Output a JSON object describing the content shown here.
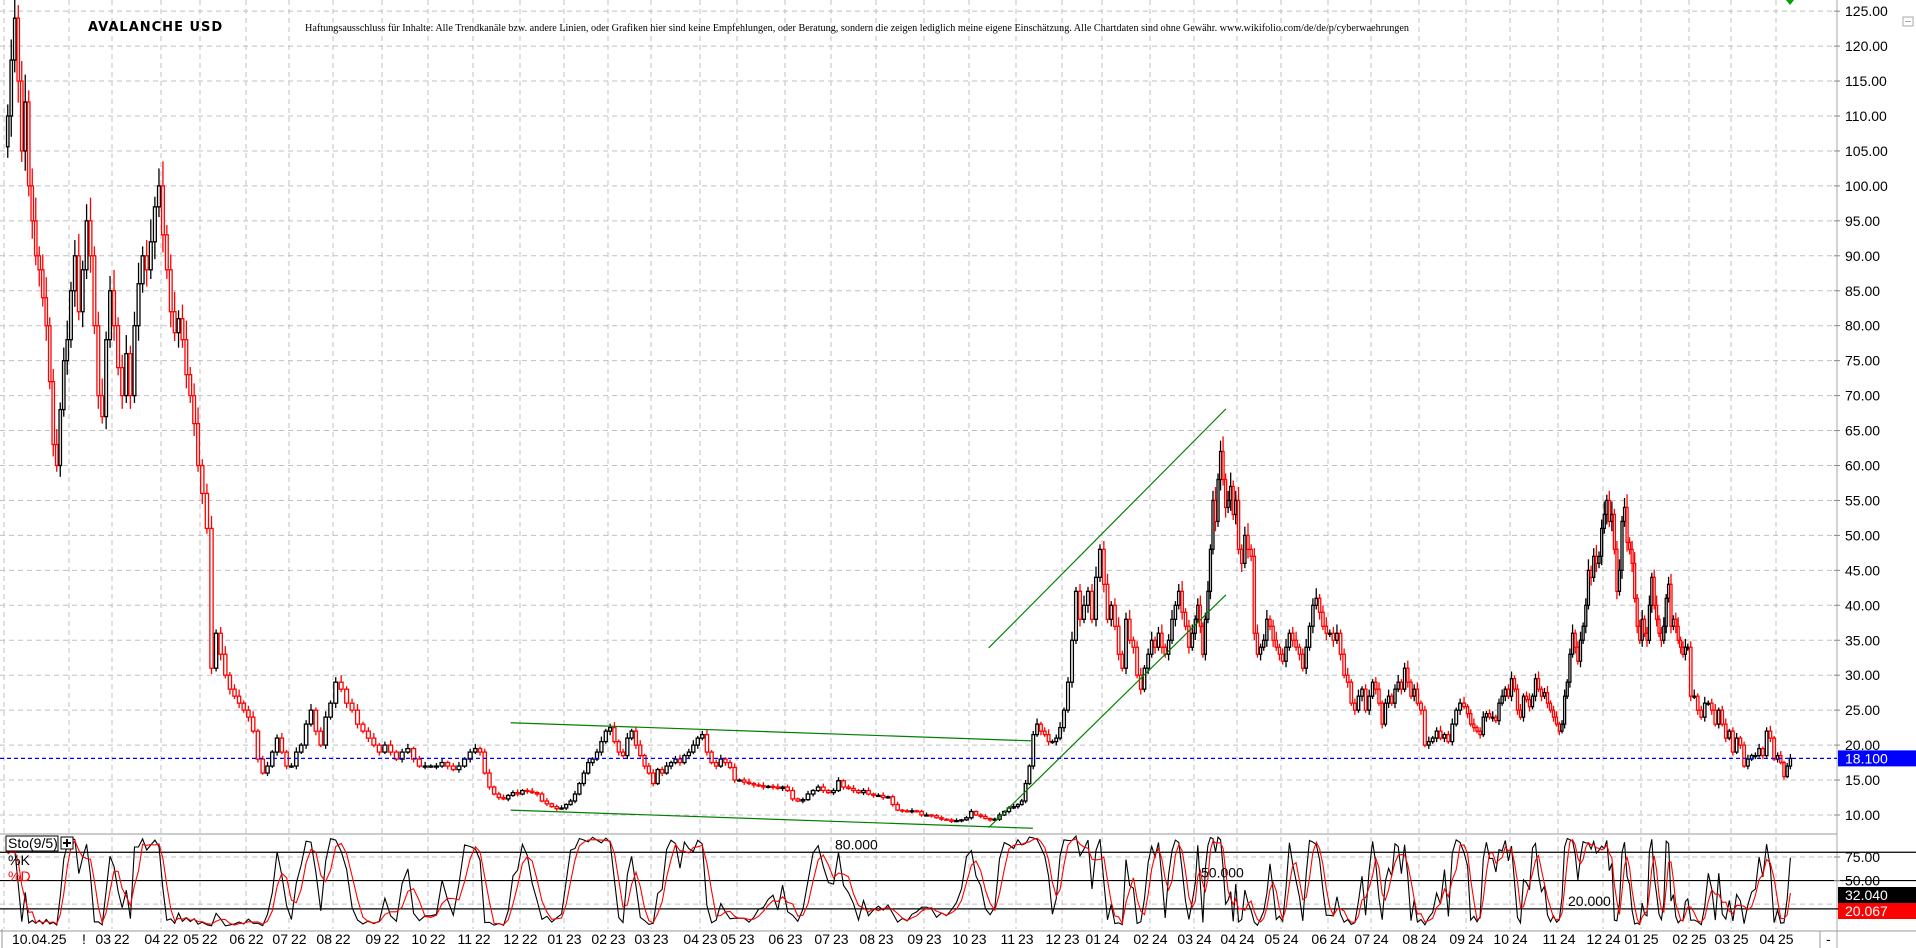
{
  "header": {
    "title": "AVALANCHE USD",
    "disclaimer": "Haftungsausschluss für Inhalte: Alle Trendkanäle bzw. andere Linien, oder Grafiken hier sind keine Empfehlungen, oder Beratung, sondern die zeigen lediglich meine eigene Einschätzung. Alle Chartdaten sind ohne Gewähr. www.wikifolio.com/de/de/p/cyberwaehrungen"
  },
  "colors": {
    "up": "#000000",
    "down": "#ff0000",
    "last_price": "#0000ff",
    "trendline": "#008000",
    "grid": "#c0c0c0"
  },
  "chart_data": [
    {
      "type": "candlestick",
      "title": "AVALANCHE USD",
      "ylim": [
        10,
        125
      ],
      "y_ticks": [
        "125.00",
        "120.00",
        "115.00",
        "110.00",
        "105.00",
        "100.00",
        "95.00",
        "90.00",
        "85.00",
        "80.00",
        "75.00",
        "70.00",
        "65.00",
        "60.00",
        "55.00",
        "50.00",
        "45.00",
        "40.00",
        "35.00",
        "30.00",
        "25.00",
        "20.00",
        "15.00",
        "10.00"
      ],
      "grid": true,
      "last_price": {
        "value": 18.1,
        "label": "18.100"
      },
      "x_labels": [
        "10.04.25",
        "!",
        "03 22",
        "04 22",
        "05 22",
        "06 22",
        "07 22",
        "08 22",
        "09 22",
        "10 22",
        "11 22",
        "12 22",
        "01 23",
        "02 23",
        "03 23",
        "04 23",
        "05 23",
        "06 23",
        "07 23",
        "08 23",
        "09 23",
        "10 23",
        "11 23",
        "12 23",
        "01 24",
        "02 24",
        "03 24",
        "04 24",
        "05 24",
        "06 24",
        "07 24",
        "08 24",
        "09 24",
        "10 24",
        "11 24",
        "12 24",
        "01 25",
        "02 25",
        "03 25",
        "04 25"
      ],
      "x_end_label": "-",
      "closes_by_month": [
        {
          "month": "2022-01",
          "close": [
            110,
            118,
            124,
            115,
            105,
            112,
            100,
            95,
            90,
            88,
            84,
            80,
            72,
            63,
            60,
            68,
            75,
            78
          ]
        },
        {
          "month": "2022-02",
          "close": [
            85,
            90,
            82,
            88,
            95,
            90,
            80,
            70,
            67,
            78,
            85
          ]
        },
        {
          "month": "2022-03",
          "close": [
            80,
            74,
            70,
            76,
            70,
            80,
            86,
            90,
            88,
            92,
            97,
            100
          ]
        },
        {
          "month": "2022-04",
          "close": [
            93,
            88,
            82,
            79,
            81,
            78,
            73,
            70,
            66,
            60
          ]
        },
        {
          "month": "2022-05",
          "close": [
            56,
            51,
            31,
            36,
            33,
            30,
            28,
            27,
            26,
            25
          ]
        },
        {
          "month": "2022-06",
          "close": [
            24,
            22,
            18,
            16,
            17,
            19,
            21,
            19,
            17
          ]
        },
        {
          "month": "2022-07",
          "close": [
            17,
            19,
            20,
            23,
            25,
            22,
            20,
            24,
            26
          ]
        },
        {
          "month": "2022-08",
          "close": [
            29,
            28,
            26,
            25,
            23,
            22,
            21,
            20,
            19
          ]
        },
        {
          "month": "2022-09",
          "close": [
            20,
            19,
            18,
            19,
            19.5,
            18,
            17,
            17
          ]
        },
        {
          "month": "2022-10",
          "close": [
            17,
            17,
            17.5,
            17,
            16.5,
            17,
            18,
            19
          ]
        },
        {
          "month": "2022-11",
          "close": [
            19.5,
            19,
            16,
            14,
            13,
            12.5,
            12.3,
            12.8,
            13.2,
            13
          ]
        },
        {
          "month": "2022-12",
          "close": [
            13.5,
            13.4,
            13.2,
            13,
            12,
            11.6,
            11.2,
            10.9,
            11
          ]
        },
        {
          "month": "2023-01",
          "close": [
            11.5,
            12,
            13,
            14.5,
            16,
            17.5,
            18,
            19,
            20.5,
            22
          ]
        },
        {
          "month": "2023-02",
          "close": [
            22.5,
            20.5,
            19,
            18.5,
            21,
            22,
            20,
            18.5,
            17,
            16
          ]
        },
        {
          "month": "2023-03",
          "close": [
            14.5,
            16.5,
            16,
            17,
            17.5,
            18,
            17.5,
            18.5,
            19,
            20,
            21
          ]
        },
        {
          "month": "2023-04",
          "close": [
            21.5,
            19,
            17.5,
            17,
            18,
            17.5,
            16.8,
            15
          ]
        },
        {
          "month": "2023-05",
          "close": [
            15,
            14.7,
            14.5,
            14.3,
            14.2,
            14,
            14.1,
            14,
            13.8,
            14
          ]
        },
        {
          "month": "2023-06",
          "close": [
            13.5,
            12.3,
            12,
            12.2,
            13,
            13.5,
            14,
            13.5,
            13.2
          ]
        },
        {
          "month": "2023-07",
          "close": [
            13.5,
            14.9,
            14,
            13.8,
            13.5,
            13.2,
            13.5,
            13,
            12.8
          ]
        },
        {
          "month": "2023-08",
          "close": [
            12.8,
            12.5,
            12.6,
            11.5,
            10.7,
            10.6,
            10.5,
            10.6,
            10.5,
            10
          ]
        },
        {
          "month": "2023-09",
          "close": [
            10,
            9.9,
            9.6,
            9.4,
            9.3,
            9.1,
            9.2,
            9.3,
            9.6
          ]
        },
        {
          "month": "2023-10",
          "close": [
            10.5,
            10,
            9.8,
            9.5,
            9.3,
            9.4,
            10,
            10.5,
            11,
            11.2
          ]
        },
        {
          "month": "2023-11",
          "close": [
            11.5,
            12,
            14.5,
            17,
            21.5,
            23,
            22,
            21.5,
            20.5,
            20.5,
            21,
            22.5
          ]
        },
        {
          "month": "2023-12",
          "close": [
            25,
            29,
            35,
            42,
            38,
            40,
            42,
            38,
            44,
            48
          ]
        },
        {
          "month": "2024-01",
          "close": [
            43,
            38,
            40,
            37,
            33,
            31,
            38,
            35,
            34,
            30,
            28,
            31,
            33
          ]
        },
        {
          "month": "2024-02",
          "close": [
            35,
            34,
            36,
            34,
            33,
            35,
            38,
            40,
            42,
            39,
            37,
            34,
            36
          ]
        },
        {
          "month": "2024-03",
          "close": [
            38,
            40,
            37,
            33,
            38,
            42,
            48,
            55,
            52,
            58,
            62,
            58,
            54,
            55,
            57,
            53,
            55
          ]
        },
        {
          "month": "2024-04",
          "close": [
            48,
            46,
            50,
            48,
            47,
            36,
            33,
            34,
            35,
            38,
            37,
            35,
            34,
            33
          ]
        },
        {
          "month": "2024-05",
          "close": [
            32,
            34,
            36,
            35,
            34,
            33,
            31,
            34,
            37,
            40,
            41,
            39,
            37,
            36
          ]
        },
        {
          "month": "2024-06",
          "close": [
            36,
            35,
            36,
            33,
            30,
            29,
            26,
            25,
            27,
            28,
            25,
            27
          ]
        },
        {
          "month": "2024-07",
          "close": [
            29,
            28,
            26,
            23,
            26,
            27,
            26,
            28,
            29,
            28,
            31,
            29,
            27,
            28,
            26
          ]
        },
        {
          "month": "2024-08",
          "close": [
            25,
            20,
            20.5,
            21,
            22,
            21,
            21.5,
            20.5,
            23,
            25,
            26,
            25.5
          ]
        },
        {
          "month": "2024-09",
          "close": [
            24.5,
            23,
            22.5,
            22,
            21.5,
            24,
            24.5,
            24,
            24,
            23.5,
            26,
            27,
            28,
            27
          ]
        },
        {
          "month": "2024-10",
          "close": [
            29.5,
            28,
            25,
            24,
            27,
            26.5,
            25.5,
            27,
            29.5,
            28,
            27,
            27.5,
            26,
            25,
            24,
            23
          ]
        },
        {
          "month": "2024-11",
          "close": [
            22,
            23,
            27,
            29,
            33,
            36,
            34,
            32,
            35,
            37,
            40,
            45,
            44,
            47,
            46,
            47,
            51
          ]
        },
        {
          "month": "2024-12",
          "close": [
            53,
            55,
            52,
            53,
            48,
            42,
            45,
            52,
            54,
            49,
            48,
            46,
            41,
            37,
            35
          ]
        },
        {
          "month": "2025-01",
          "close": [
            38,
            36,
            35,
            40,
            44,
            40,
            38,
            36,
            35,
            37,
            41,
            43,
            37,
            38,
            37,
            35,
            34,
            33,
            34,
            34
          ]
        },
        {
          "month": "2025-02",
          "close": [
            27,
            27,
            25,
            24,
            26,
            26,
            25,
            23,
            25,
            23,
            21,
            22
          ]
        },
        {
          "month": "2025-03",
          "close": [
            19,
            21,
            20,
            17,
            18,
            18.5,
            18.5,
            19.5,
            18.5,
            22,
            21,
            18
          ]
        },
        {
          "month": "2025-04",
          "close": [
            18.5,
            17.5,
            15.5,
            17,
            18.1
          ]
        }
      ],
      "trendlines": [
        {
          "from": {
            "date": "2022-11-25",
            "price": 23.2
          },
          "to": {
            "date": "2023-11-12",
            "price": 20.6
          }
        },
        {
          "from": {
            "date": "2022-11-25",
            "price": 10.7
          },
          "to": {
            "date": "2023-11-12",
            "price": 8.1
          }
        },
        {
          "from": {
            "date": "2023-10-14",
            "price": 8.2
          },
          "to": {
            "date": "2024-03-24",
            "price": 41.5
          }
        },
        {
          "from": {
            "date": "2023-10-14",
            "price": 33.9
          },
          "to": {
            "date": "2024-03-24",
            "price": 68.1
          }
        }
      ]
    },
    {
      "type": "line",
      "indicator": "Sto(9/5)",
      "series": [
        {
          "name": "%K",
          "color": "#000000"
        },
        {
          "name": "%D",
          "color": "#ff0000"
        }
      ],
      "ylim": [
        0,
        100
      ],
      "y_ticks": [
        "75.00",
        "50.00"
      ],
      "levels": [
        {
          "value": 80,
          "label": "80.000"
        },
        {
          "value": 50,
          "label": "50.000"
        },
        {
          "value": 20,
          "label": "20.000"
        }
      ],
      "last_values": {
        "k": "32.040",
        "d": "20.067"
      }
    }
  ]
}
